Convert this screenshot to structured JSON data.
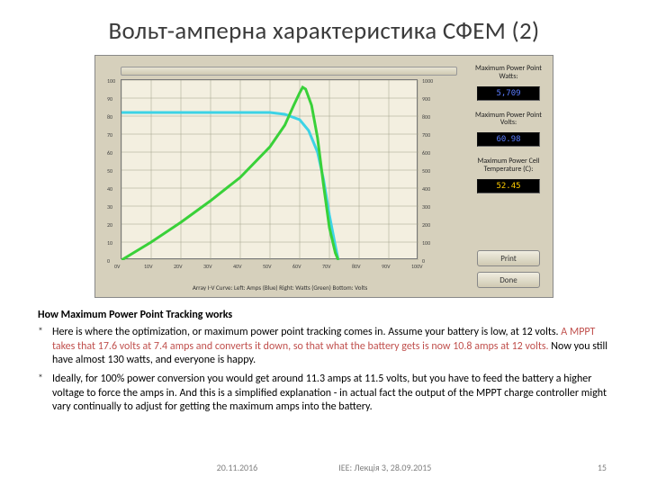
{
  "title": "Вольт-амперна характеристика СФЕМ (2)",
  "chart": {
    "type": "line",
    "xaxis_label": "Array I-V Curve: Left: Amps (Blue) Right: Watts (Green) Bottom: Volts",
    "background": "#f3efe0",
    "panel_background": "#d6d0bc",
    "grid_color": "#a0a088",
    "xlim": [
      0,
      100
    ],
    "ylim_left": [
      0,
      100
    ],
    "ylim_right": [
      0,
      1000
    ],
    "xtick_step": 10,
    "ytick_left_step": 10,
    "ytick_right_step": 100,
    "xticks": [
      "0V",
      "10V",
      "20V",
      "30V",
      "40V",
      "50V",
      "60V",
      "70V",
      "80V",
      "90V",
      "100V"
    ],
    "yticks_left": [
      "0",
      "10",
      "20",
      "30",
      "40",
      "50",
      "60",
      "70",
      "80",
      "90",
      "100"
    ],
    "yticks_right": [
      "0",
      "100",
      "200",
      "300",
      "400",
      "500",
      "600",
      "700",
      "800",
      "900",
      "1000"
    ],
    "series": [
      {
        "name": "amps",
        "color": "#3dd3e6",
        "width": 3,
        "points": [
          [
            0,
            82
          ],
          [
            10,
            82
          ],
          [
            20,
            82
          ],
          [
            30,
            82
          ],
          [
            40,
            82
          ],
          [
            50,
            82
          ],
          [
            55,
            81
          ],
          [
            60,
            78
          ],
          [
            63,
            72
          ],
          [
            66,
            60
          ],
          [
            68,
            45
          ],
          [
            70,
            25
          ],
          [
            72,
            8
          ],
          [
            73,
            0
          ]
        ]
      },
      {
        "name": "watts",
        "color": "#39d139",
        "width": 3,
        "points": [
          [
            0,
            0
          ],
          [
            10,
            10
          ],
          [
            20,
            21
          ],
          [
            30,
            33
          ],
          [
            40,
            46
          ],
          [
            50,
            63
          ],
          [
            55,
            75
          ],
          [
            58,
            86
          ],
          [
            60,
            93
          ],
          [
            61,
            96
          ],
          [
            62,
            95
          ],
          [
            64,
            86
          ],
          [
            66,
            68
          ],
          [
            68,
            42
          ],
          [
            70,
            18
          ],
          [
            72,
            4
          ],
          [
            73,
            0
          ]
        ]
      }
    ]
  },
  "readouts": {
    "label_watts": "Maximum Power Point Watts:",
    "value_watts": "5,709",
    "label_volts": "Maximum Power Point Volts:",
    "value_volts": "60.98",
    "label_temp": "Maximum Power Cell Temperature (C):",
    "value_temp": "52.45"
  },
  "buttons": {
    "print": "Print",
    "done": "Done"
  },
  "text": {
    "heading": "How Maximum Power Point Tracking works",
    "b1_pre": "Here is where the optimization, or maximum power point tracking comes in. Assume your battery is low, at 12 volts. ",
    "b1_hi": "A MPPT takes that 17.6 volts at 7.4 amps and converts it down, so that what the battery gets is now 10.8 amps at 12 volts. ",
    "b1_post": "Now you still have almost 130 watts, and everyone is happy.",
    "b2": "Ideally, for 100% power conversion you would get around 11.3 amps at 11.5 volts, but you have to feed the battery a higher voltage to force the amps in. And this is a simplified explanation - in actual fact the output of the MPPT charge controller might vary continually to adjust for getting the maximum amps into the battery."
  },
  "footer": {
    "date": "20.11.2016",
    "mid": "ІЕЕ: Лекція 3, 28.09.2015",
    "page": "15"
  }
}
